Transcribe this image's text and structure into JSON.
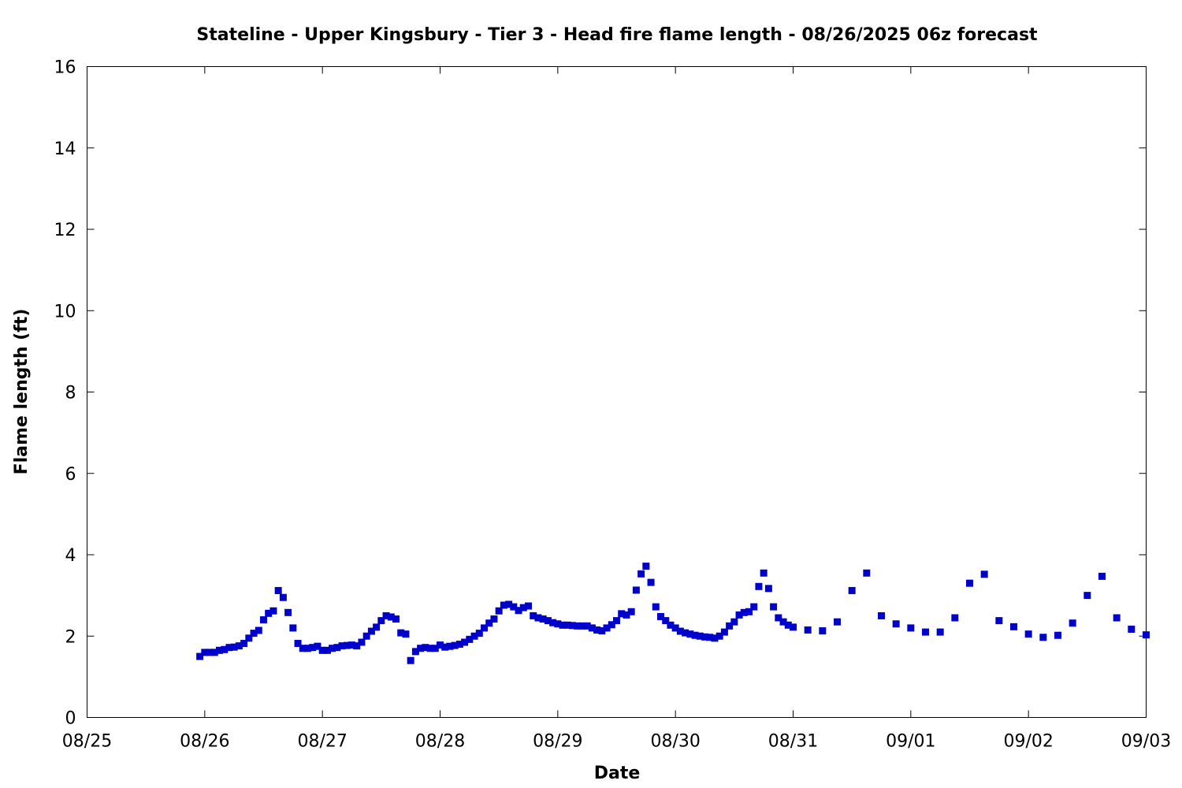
{
  "chart_data": {
    "type": "scatter",
    "title": "Stateline - Upper Kingsbury - Tier 3 - Head fire flame length - 08/26/2025 06z forecast",
    "xlabel": "Date",
    "ylabel": "Flame length (ft)",
    "x_axis_type": "date",
    "xlim": [
      "2025-08-25",
      "2025-09-03"
    ],
    "ylim": [
      0,
      16
    ],
    "grid": false,
    "marker_color": "#0000cc",
    "marker": "square",
    "x_ticks": [
      {
        "date": "2025-08-25",
        "label": "08/25"
      },
      {
        "date": "2025-08-26",
        "label": "08/26"
      },
      {
        "date": "2025-08-27",
        "label": "08/27"
      },
      {
        "date": "2025-08-28",
        "label": "08/28"
      },
      {
        "date": "2025-08-29",
        "label": "08/29"
      },
      {
        "date": "2025-08-30",
        "label": "08/30"
      },
      {
        "date": "2025-08-31",
        "label": "08/31"
      },
      {
        "date": "2025-09-01",
        "label": "09/01"
      },
      {
        "date": "2025-09-02",
        "label": "09/02"
      },
      {
        "date": "2025-09-03",
        "label": "09/03"
      }
    ],
    "y_ticks": [
      0,
      2,
      4,
      6,
      8,
      10,
      12,
      14,
      16
    ],
    "series": [
      {
        "points": [
          [
            "2025-08-25 23:00",
            1.5
          ],
          [
            "2025-08-26 00:00",
            1.6
          ],
          [
            "2025-08-26 01:00",
            1.6
          ],
          [
            "2025-08-26 02:00",
            1.6
          ],
          [
            "2025-08-26 03:00",
            1.65
          ],
          [
            "2025-08-26 04:00",
            1.67
          ],
          [
            "2025-08-26 05:00",
            1.72
          ],
          [
            "2025-08-26 06:00",
            1.73
          ],
          [
            "2025-08-26 07:00",
            1.76
          ],
          [
            "2025-08-26 08:00",
            1.82
          ],
          [
            "2025-08-26 09:00",
            1.95
          ],
          [
            "2025-08-26 10:00",
            2.07
          ],
          [
            "2025-08-26 11:00",
            2.14
          ],
          [
            "2025-08-26 12:00",
            2.4
          ],
          [
            "2025-08-26 13:00",
            2.56
          ],
          [
            "2025-08-26 14:00",
            2.62
          ],
          [
            "2025-08-26 15:00",
            3.12
          ],
          [
            "2025-08-26 16:00",
            2.95
          ],
          [
            "2025-08-26 17:00",
            2.58
          ],
          [
            "2025-08-26 18:00",
            2.2
          ],
          [
            "2025-08-26 19:00",
            1.82
          ],
          [
            "2025-08-26 20:00",
            1.7
          ],
          [
            "2025-08-26 21:00",
            1.7
          ],
          [
            "2025-08-26 22:00",
            1.72
          ],
          [
            "2025-08-26 23:00",
            1.75
          ],
          [
            "2025-08-27 00:00",
            1.65
          ],
          [
            "2025-08-27 01:00",
            1.65
          ],
          [
            "2025-08-27 02:00",
            1.7
          ],
          [
            "2025-08-27 03:00",
            1.72
          ],
          [
            "2025-08-27 04:00",
            1.76
          ],
          [
            "2025-08-27 05:00",
            1.77
          ],
          [
            "2025-08-27 06:00",
            1.78
          ],
          [
            "2025-08-27 07:00",
            1.76
          ],
          [
            "2025-08-27 08:00",
            1.85
          ],
          [
            "2025-08-27 09:00",
            2.0
          ],
          [
            "2025-08-27 10:00",
            2.12
          ],
          [
            "2025-08-27 11:00",
            2.22
          ],
          [
            "2025-08-27 12:00",
            2.38
          ],
          [
            "2025-08-27 13:00",
            2.5
          ],
          [
            "2025-08-27 14:00",
            2.47
          ],
          [
            "2025-08-27 15:00",
            2.42
          ],
          [
            "2025-08-27 16:00",
            2.08
          ],
          [
            "2025-08-27 17:00",
            2.05
          ],
          [
            "2025-08-27 18:00",
            1.4
          ],
          [
            "2025-08-27 19:00",
            1.62
          ],
          [
            "2025-08-27 20:00",
            1.7
          ],
          [
            "2025-08-27 21:00",
            1.72
          ],
          [
            "2025-08-27 22:00",
            1.7
          ],
          [
            "2025-08-27 23:00",
            1.7
          ],
          [
            "2025-08-28 00:00",
            1.78
          ],
          [
            "2025-08-28 01:00",
            1.73
          ],
          [
            "2025-08-28 02:00",
            1.75
          ],
          [
            "2025-08-28 03:00",
            1.77
          ],
          [
            "2025-08-28 04:00",
            1.8
          ],
          [
            "2025-08-28 05:00",
            1.85
          ],
          [
            "2025-08-28 06:00",
            1.92
          ],
          [
            "2025-08-28 07:00",
            2.0
          ],
          [
            "2025-08-28 08:00",
            2.07
          ],
          [
            "2025-08-28 09:00",
            2.2
          ],
          [
            "2025-08-28 10:00",
            2.32
          ],
          [
            "2025-08-28 11:00",
            2.42
          ],
          [
            "2025-08-28 12:00",
            2.62
          ],
          [
            "2025-08-28 13:00",
            2.76
          ],
          [
            "2025-08-28 14:00",
            2.78
          ],
          [
            "2025-08-28 15:00",
            2.72
          ],
          [
            "2025-08-28 16:00",
            2.63
          ],
          [
            "2025-08-28 17:00",
            2.7
          ],
          [
            "2025-08-28 18:00",
            2.74
          ],
          [
            "2025-08-28 19:00",
            2.5
          ],
          [
            "2025-08-28 20:00",
            2.45
          ],
          [
            "2025-08-28 21:00",
            2.42
          ],
          [
            "2025-08-28 22:00",
            2.38
          ],
          [
            "2025-08-28 23:00",
            2.33
          ],
          [
            "2025-08-29 00:00",
            2.3
          ],
          [
            "2025-08-29 01:00",
            2.27
          ],
          [
            "2025-08-29 02:00",
            2.27
          ],
          [
            "2025-08-29 03:00",
            2.26
          ],
          [
            "2025-08-29 04:00",
            2.25
          ],
          [
            "2025-08-29 05:00",
            2.25
          ],
          [
            "2025-08-29 06:00",
            2.25
          ],
          [
            "2025-08-29 07:00",
            2.2
          ],
          [
            "2025-08-29 08:00",
            2.15
          ],
          [
            "2025-08-29 09:00",
            2.13
          ],
          [
            "2025-08-29 10:00",
            2.2
          ],
          [
            "2025-08-29 11:00",
            2.28
          ],
          [
            "2025-08-29 12:00",
            2.38
          ],
          [
            "2025-08-29 13:00",
            2.55
          ],
          [
            "2025-08-29 14:00",
            2.52
          ],
          [
            "2025-08-29 15:00",
            2.6
          ],
          [
            "2025-08-29 16:00",
            3.13
          ],
          [
            "2025-08-29 17:00",
            3.53
          ],
          [
            "2025-08-29 18:00",
            3.72
          ],
          [
            "2025-08-29 19:00",
            3.32
          ],
          [
            "2025-08-29 20:00",
            2.72
          ],
          [
            "2025-08-29 21:00",
            2.48
          ],
          [
            "2025-08-29 22:00",
            2.38
          ],
          [
            "2025-08-29 23:00",
            2.27
          ],
          [
            "2025-08-30 00:00",
            2.2
          ],
          [
            "2025-08-30 01:00",
            2.12
          ],
          [
            "2025-08-30 02:00",
            2.08
          ],
          [
            "2025-08-30 03:00",
            2.05
          ],
          [
            "2025-08-30 04:00",
            2.02
          ],
          [
            "2025-08-30 05:00",
            2.0
          ],
          [
            "2025-08-30 06:00",
            1.98
          ],
          [
            "2025-08-30 07:00",
            1.97
          ],
          [
            "2025-08-30 08:00",
            1.95
          ],
          [
            "2025-08-30 09:00",
            2.0
          ],
          [
            "2025-08-30 10:00",
            2.1
          ],
          [
            "2025-08-30 11:00",
            2.25
          ],
          [
            "2025-08-30 12:00",
            2.35
          ],
          [
            "2025-08-30 13:00",
            2.52
          ],
          [
            "2025-08-30 14:00",
            2.58
          ],
          [
            "2025-08-30 15:00",
            2.6
          ],
          [
            "2025-08-30 16:00",
            2.72
          ],
          [
            "2025-08-30 17:00",
            3.22
          ],
          [
            "2025-08-30 18:00",
            3.55
          ],
          [
            "2025-08-30 19:00",
            3.17
          ],
          [
            "2025-08-30 20:00",
            2.72
          ],
          [
            "2025-08-30 21:00",
            2.45
          ],
          [
            "2025-08-30 22:00",
            2.35
          ],
          [
            "2025-08-30 23:00",
            2.27
          ],
          [
            "2025-08-31 00:00",
            2.22
          ],
          [
            "2025-08-31 03:00",
            2.15
          ],
          [
            "2025-08-31 06:00",
            2.13
          ],
          [
            "2025-08-31 09:00",
            2.35
          ],
          [
            "2025-08-31 12:00",
            3.12
          ],
          [
            "2025-08-31 15:00",
            3.55
          ],
          [
            "2025-08-31 18:00",
            2.5
          ],
          [
            "2025-08-31 21:00",
            2.3
          ],
          [
            "2025-09-01 00:00",
            2.2
          ],
          [
            "2025-09-01 03:00",
            2.1
          ],
          [
            "2025-09-01 06:00",
            2.1
          ],
          [
            "2025-09-01 09:00",
            2.45
          ],
          [
            "2025-09-01 12:00",
            3.3
          ],
          [
            "2025-09-01 15:00",
            3.52
          ],
          [
            "2025-09-01 18:00",
            2.38
          ],
          [
            "2025-09-01 21:00",
            2.23
          ],
          [
            "2025-09-02 00:00",
            2.05
          ],
          [
            "2025-09-02 03:00",
            1.97
          ],
          [
            "2025-09-02 06:00",
            2.02
          ],
          [
            "2025-09-02 09:00",
            2.32
          ],
          [
            "2025-09-02 12:00",
            3.0
          ],
          [
            "2025-09-02 15:00",
            3.47
          ],
          [
            "2025-09-02 18:00",
            2.45
          ],
          [
            "2025-09-02 21:00",
            2.17
          ],
          [
            "2025-09-03 00:00",
            2.03
          ]
        ]
      }
    ]
  }
}
